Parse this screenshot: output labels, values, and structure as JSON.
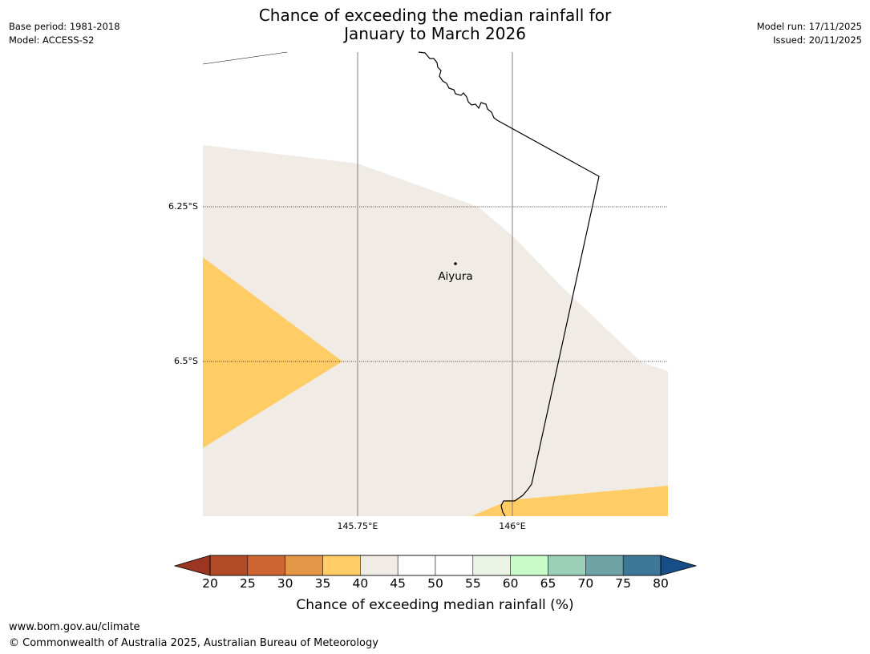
{
  "header": {
    "title_line1": "Chance of exceeding the median rainfall for",
    "title_line2": "January to March 2026",
    "base_period": "Base period: 1981-2018",
    "model": "Model: ACCESS-S2",
    "model_run": "Model run: 17/11/2025",
    "issued": "Issued: 20/11/2025"
  },
  "map": {
    "lat_labels": [
      "6.25°S",
      "6.5°S"
    ],
    "lon_labels": [
      "145.75°E",
      "146°E"
    ],
    "place": {
      "name": "Aiyura"
    },
    "colors": {
      "below_35_40": "#ffcc66",
      "band_40_45": "#f0ebe5",
      "coast": "#000000",
      "gridline": "#808080"
    }
  },
  "colorbar": {
    "title": "Chance of exceeding median rainfall (%)",
    "ticks": [
      "20",
      "25",
      "30",
      "35",
      "40",
      "45",
      "50",
      "55",
      "60",
      "65",
      "70",
      "75",
      "80"
    ],
    "low_extend_color": "#9a3622",
    "high_extend_color": "#174e88",
    "segment_colors": [
      "#b24a28",
      "#cf6533",
      "#e39646",
      "#ffcc66",
      "#f0ebe5",
      "#ffffff",
      "#ffffff",
      "#eaf5e5",
      "#c8fbc8",
      "#9dd0b8",
      "#6ea4a6",
      "#3d7899"
    ]
  },
  "footer": {
    "url": "www.bom.gov.au/climate",
    "copyright": "© Commonwealth of Australia 2025, Australian Bureau of Meteorology"
  }
}
